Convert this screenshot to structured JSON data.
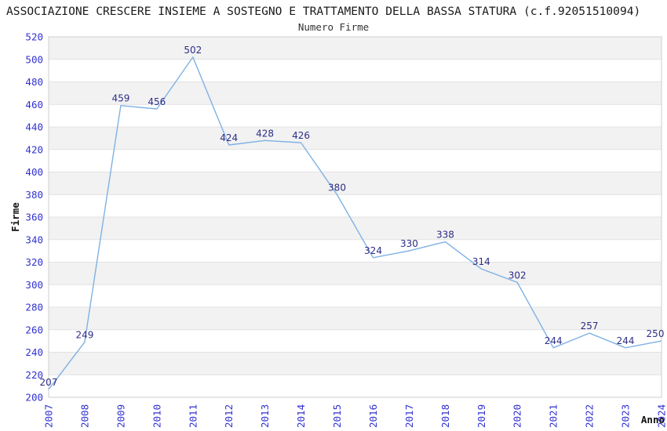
{
  "header": {
    "title": "ASSOCIAZIONE CRESCERE INSIEME A SOSTEGNO E TRATTAMENTO DELLA BASSA STATURA (c.f.92051510094)",
    "subtitle": "Numero Firme"
  },
  "chart_data": {
    "type": "line",
    "title": "Numero Firme",
    "xlabel": "Anno",
    "ylabel": "Firme",
    "categories": [
      "2007",
      "2008",
      "2009",
      "2010",
      "2011",
      "2012",
      "2013",
      "2014",
      "2015",
      "2016",
      "2017",
      "2018",
      "2019",
      "2020",
      "2021",
      "2022",
      "2023",
      "2024"
    ],
    "values": [
      207,
      249,
      459,
      456,
      502,
      424,
      428,
      426,
      380,
      324,
      330,
      338,
      314,
      302,
      244,
      257,
      244,
      250
    ],
    "ylim": [
      200,
      520
    ],
    "ytick_step": 20,
    "grid": true,
    "point_labels": true,
    "legend_position": "none",
    "colors": {
      "line": "#7fb1e4",
      "point_label": "#2d2d87",
      "tick_label": "#3131d1",
      "band": "#f2f2f2",
      "grid": "#e1e1e1",
      "border": "#d6d6d6",
      "axis_label": "#111111"
    }
  }
}
